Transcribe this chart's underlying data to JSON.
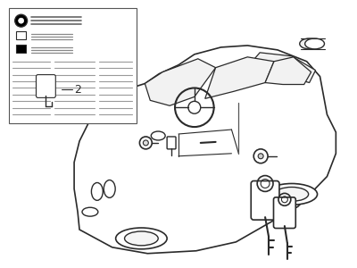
{
  "background_color": "#ffffff",
  "line_color": "#2a2a2a",
  "fig_width": 4.0,
  "fig_height": 3.0,
  "dpi": 100
}
